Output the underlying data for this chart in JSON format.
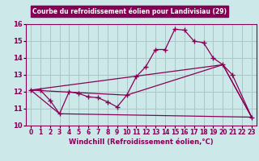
{
  "title": "Courbe du refroidissement éolien pour Landivisiau (29)",
  "xlabel": "Windchill (Refroidissement éolien,°C)",
  "xlim": [
    -0.5,
    23.5
  ],
  "ylim": [
    10,
    16
  ],
  "yticks": [
    10,
    11,
    12,
    13,
    14,
    15,
    16
  ],
  "xticks": [
    0,
    1,
    2,
    3,
    4,
    5,
    6,
    7,
    8,
    9,
    10,
    11,
    12,
    13,
    14,
    15,
    16,
    17,
    18,
    19,
    20,
    21,
    22,
    23
  ],
  "bg_color": "#cce8e8",
  "grid_color": "#aac8c8",
  "line_color": "#880055",
  "title_bg": "#880055",
  "title_fg": "#ffffff",
  "series_main": {
    "x": [
      0,
      1,
      2,
      3,
      4,
      5,
      6,
      7,
      8,
      9,
      10,
      11,
      12,
      13,
      14,
      15,
      16,
      17,
      18,
      19,
      20,
      21,
      23
    ],
    "y": [
      12.1,
      12.1,
      11.5,
      10.7,
      12.0,
      11.9,
      11.7,
      11.65,
      11.4,
      11.1,
      11.8,
      12.9,
      13.5,
      14.5,
      14.5,
      15.7,
      15.65,
      15.0,
      14.9,
      14.0,
      13.6,
      13.0,
      10.5
    ]
  },
  "series_line1": {
    "x": [
      0,
      3,
      23
    ],
    "y": [
      12.1,
      10.7,
      10.5
    ]
  },
  "series_line2": {
    "x": [
      0,
      10,
      20,
      23
    ],
    "y": [
      12.1,
      11.8,
      13.6,
      10.5
    ]
  },
  "series_line3": {
    "x": [
      0,
      20,
      23
    ],
    "y": [
      12.1,
      13.6,
      10.5
    ]
  }
}
